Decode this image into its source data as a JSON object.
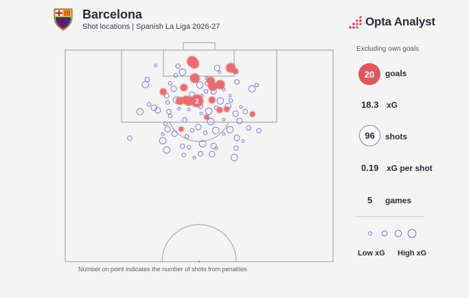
{
  "header": {
    "title": "Barcelona",
    "subtitle": "Shot locations | Spanish La Liga 2026-27",
    "brand": "Opta Analyst",
    "crest_icon": "fc-barcelona-crest-icon",
    "brand_icon": "opta-dots-logo-icon"
  },
  "stats": {
    "note": "Excluding own goals",
    "goals_value": "20",
    "goals_label": "goals",
    "xg_value": "18.3",
    "xg_label": "xG",
    "shots_value": "96",
    "shots_label": "shots",
    "xg_per_shot_value": "0.19",
    "xg_per_shot_label": "xG per shot",
    "games_value": "5",
    "games_label": "games"
  },
  "legend": {
    "low": "Low xG",
    "high": "High xG"
  },
  "footnote": "Number on point indicates the number of shots from penalties",
  "colors": {
    "goal": "#e0585f",
    "goal_fill": "#e76d72",
    "shot": "#8b74d8",
    "pitch_line": "#9a9aa4"
  },
  "chart_data": {
    "type": "scatter",
    "description_units": "pitch coordinates: x across pitch width 0-100, y distance from goal line 0-100 (attacking half)",
    "series": [
      {
        "name": "goals",
        "points": [
          {
            "x": 47.4,
            "y": 5.3,
            "xg": 0.45
          },
          {
            "x": 48.2,
            "y": 6.4,
            "xg": 0.35
          },
          {
            "x": 61.8,
            "y": 8.4,
            "xg": 0.35
          },
          {
            "x": 63.6,
            "y": 10.0,
            "xg": 0.06
          },
          {
            "x": 48.4,
            "y": 13.3,
            "xg": 0.35
          },
          {
            "x": 54.3,
            "y": 14.5,
            "xg": 0.2
          },
          {
            "x": 55.1,
            "y": 17.1,
            "xg": 0.3
          },
          {
            "x": 57.9,
            "y": 16.3,
            "xg": 0.3
          },
          {
            "x": 44.3,
            "y": 17.7,
            "xg": 0.15
          },
          {
            "x": 36.6,
            "y": 19.7,
            "xg": 0.12
          },
          {
            "x": 45.1,
            "y": 23.6,
            "xg": 0.25
          },
          {
            "x": 46.2,
            "y": 24.2,
            "xg": 0.3
          },
          {
            "x": 49.2,
            "y": 24.0,
            "xg": 0.76,
            "label": "2"
          },
          {
            "x": 54.8,
            "y": 23.6,
            "xg": 0.12
          },
          {
            "x": 57.7,
            "y": 28.3,
            "xg": 0.08
          },
          {
            "x": 60.3,
            "y": 27.9,
            "xg": 0.06
          },
          {
            "x": 52.8,
            "y": 31.7,
            "xg": 0.04
          },
          {
            "x": 69.9,
            "y": 30.3,
            "xg": 0.05
          },
          {
            "x": 43.3,
            "y": 37.4,
            "xg": 0.04
          },
          {
            "x": 42.8,
            "y": 24.0,
            "xg": 0.2
          }
        ]
      },
      {
        "name": "shots",
        "points": [
          {
            "x": 33.8,
            "y": 7.2
          },
          {
            "x": 42.1,
            "y": 7.6
          },
          {
            "x": 43.8,
            "y": 10.4
          },
          {
            "x": 41.3,
            "y": 12.0
          },
          {
            "x": 56.7,
            "y": 8.5
          },
          {
            "x": 57.7,
            "y": 10.4
          },
          {
            "x": 30.6,
            "y": 13.9
          },
          {
            "x": 29.9,
            "y": 16.3
          },
          {
            "x": 39.2,
            "y": 15.7
          },
          {
            "x": 40.5,
            "y": 18.3
          },
          {
            "x": 52.8,
            "y": 13.3
          },
          {
            "x": 53.1,
            "y": 15.7
          },
          {
            "x": 50.3,
            "y": 16.5
          },
          {
            "x": 52.6,
            "y": 19.5
          },
          {
            "x": 55.4,
            "y": 19.5
          },
          {
            "x": 59.2,
            "y": 18.7
          },
          {
            "x": 64.1,
            "y": 15.0
          },
          {
            "x": 69.7,
            "y": 18.3
          },
          {
            "x": 71.5,
            "y": 16.5
          },
          {
            "x": 47.4,
            "y": 21.0
          },
          {
            "x": 51.0,
            "y": 21.6
          },
          {
            "x": 37.9,
            "y": 21.6
          },
          {
            "x": 41.5,
            "y": 23.6
          },
          {
            "x": 38.2,
            "y": 24.8
          },
          {
            "x": 33.1,
            "y": 27.3
          },
          {
            "x": 42.5,
            "y": 27.7
          },
          {
            "x": 38.7,
            "y": 29.1
          },
          {
            "x": 57.9,
            "y": 24.0
          },
          {
            "x": 61.8,
            "y": 23.8
          },
          {
            "x": 60.8,
            "y": 26.4
          },
          {
            "x": 65.6,
            "y": 26.8
          },
          {
            "x": 67.2,
            "y": 29.1
          },
          {
            "x": 53.6,
            "y": 28.9
          },
          {
            "x": 56.4,
            "y": 27.2
          },
          {
            "x": 63.6,
            "y": 30.1
          },
          {
            "x": 46.2,
            "y": 28.1
          },
          {
            "x": 50.5,
            "y": 26.6
          },
          {
            "x": 27.9,
            "y": 29.1
          },
          {
            "x": 31.3,
            "y": 25.6
          },
          {
            "x": 34.6,
            "y": 28.5
          },
          {
            "x": 50.8,
            "y": 30.0
          },
          {
            "x": 44.6,
            "y": 33.0
          },
          {
            "x": 54.3,
            "y": 33.8
          },
          {
            "x": 37.4,
            "y": 34.8
          },
          {
            "x": 65.1,
            "y": 33.5
          },
          {
            "x": 59.2,
            "y": 32.9
          },
          {
            "x": 68.5,
            "y": 36.8
          },
          {
            "x": 56.2,
            "y": 38.0
          },
          {
            "x": 47.4,
            "y": 37.9
          },
          {
            "x": 49.7,
            "y": 36.4
          },
          {
            "x": 59.2,
            "y": 39.7
          },
          {
            "x": 72.3,
            "y": 38.1
          },
          {
            "x": 61.5,
            "y": 37.6
          },
          {
            "x": 52.3,
            "y": 39.1
          },
          {
            "x": 40.8,
            "y": 39.5
          },
          {
            "x": 36.4,
            "y": 39.7
          },
          {
            "x": 24.1,
            "y": 41.6
          },
          {
            "x": 36.4,
            "y": 42.8
          },
          {
            "x": 45.4,
            "y": 40.8
          },
          {
            "x": 64.1,
            "y": 41.5
          },
          {
            "x": 66.4,
            "y": 43.0
          },
          {
            "x": 43.8,
            "y": 45.5
          },
          {
            "x": 51.3,
            "y": 44.3
          },
          {
            "x": 46.2,
            "y": 45.9
          },
          {
            "x": 55.4,
            "y": 45.3
          },
          {
            "x": 56.4,
            "y": 46.4
          },
          {
            "x": 63.8,
            "y": 46.4
          },
          {
            "x": 37.9,
            "y": 47.2
          },
          {
            "x": 44.3,
            "y": 49.6
          },
          {
            "x": 54.8,
            "y": 49.2
          },
          {
            "x": 48.2,
            "y": 50.8
          },
          {
            "x": 50.5,
            "y": 49.0
          },
          {
            "x": 63.1,
            "y": 50.8
          },
          {
            "x": 39.2,
            "y": 31.2
          },
          {
            "x": 38.2,
            "y": 37.4
          },
          {
            "x": 61.5,
            "y": 21.6
          }
        ]
      }
    ]
  }
}
